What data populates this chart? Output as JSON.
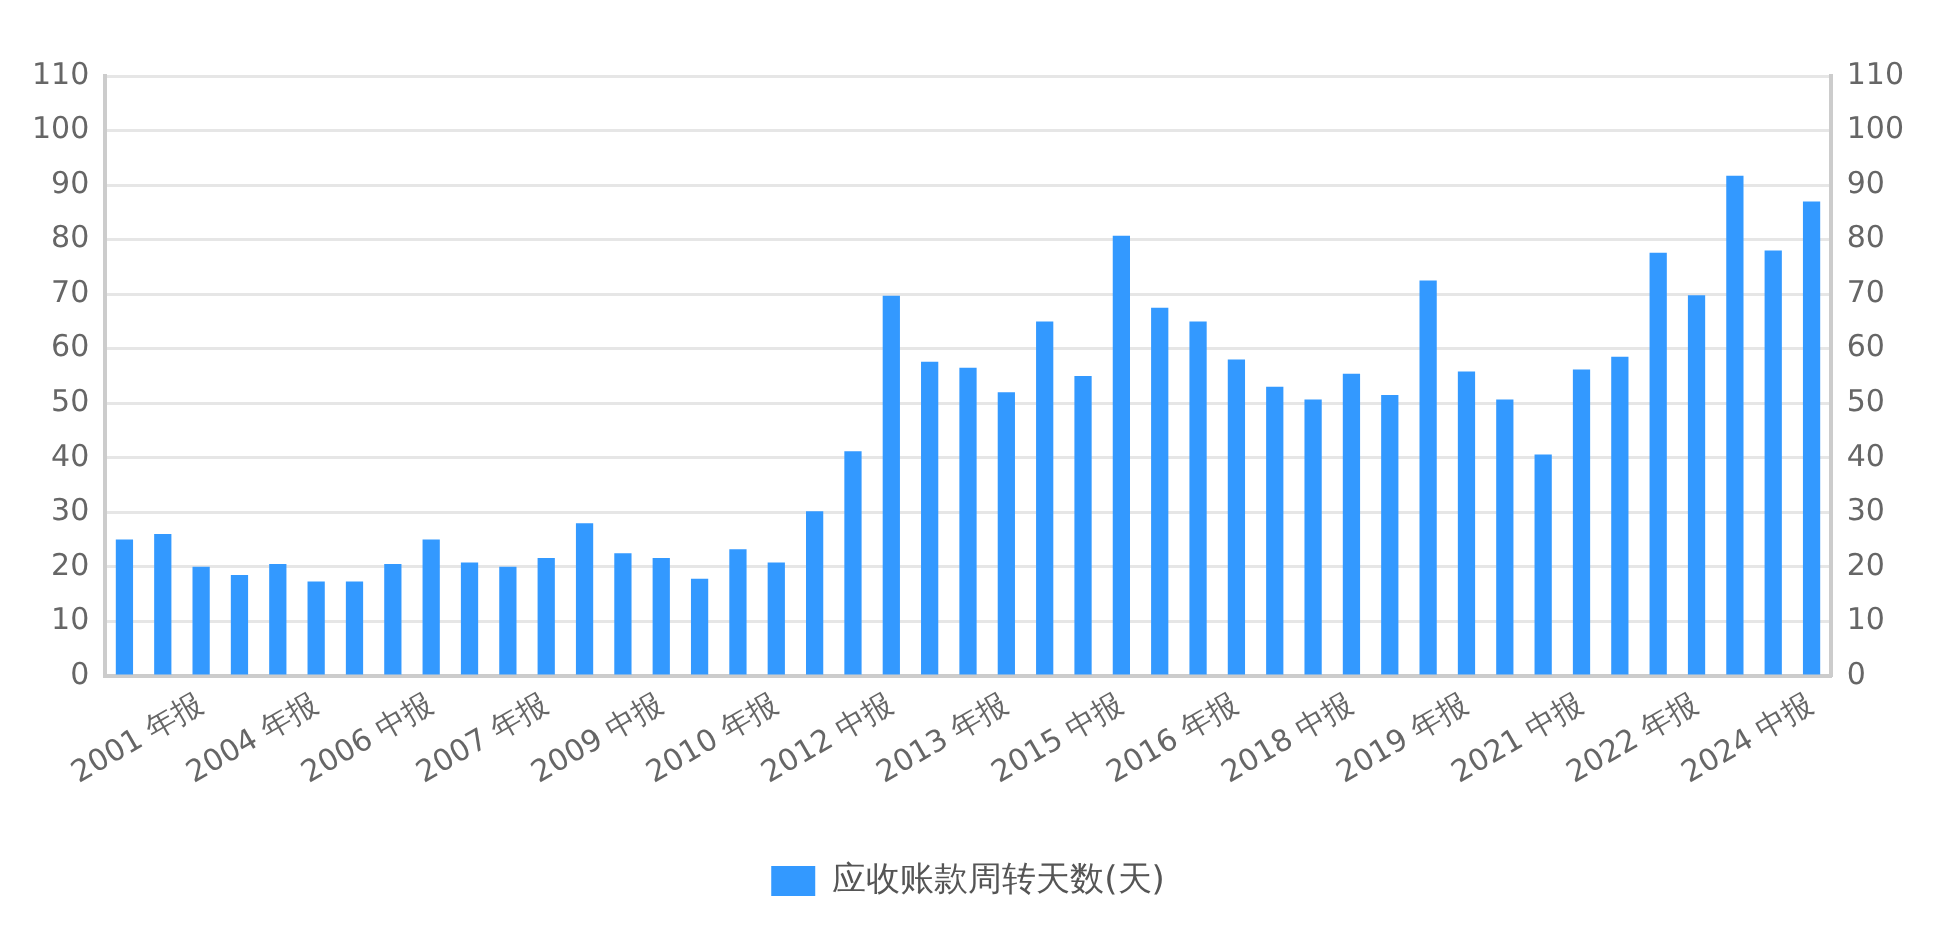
{
  "chart_data": {
    "type": "bar",
    "categories": [
      null,
      null,
      "2001 年报",
      null,
      null,
      "2004 年报",
      null,
      null,
      "2006 中报",
      null,
      null,
      "2007 年报",
      null,
      null,
      "2009 中报",
      null,
      null,
      "2010 年报",
      null,
      null,
      "2012 中报",
      null,
      null,
      "2013 年报",
      null,
      null,
      "2015 中报",
      null,
      null,
      "2016 年报",
      null,
      null,
      "2018 中报",
      null,
      null,
      "2019 年报",
      null,
      null,
      "2021 中报",
      null,
      null,
      "2022 年报",
      null,
      null,
      "2024 中报"
    ],
    "series": [
      {
        "name": "应收账款周转天数(天)",
        "color": "#3399ff",
        "values": [
          25,
          26,
          20,
          18.5,
          20.5,
          17.3,
          17.3,
          20.5,
          25,
          20.8,
          20,
          21.6,
          28,
          22.5,
          21.6,
          17.8,
          23.2,
          20.8,
          30.2,
          41.2,
          69.7,
          57.6,
          56.5,
          52,
          65,
          55,
          80.7,
          67.5,
          65,
          58,
          53,
          50.7,
          55.4,
          51.5,
          72.5,
          55.8,
          50.7,
          40.6,
          56.2,
          58.5,
          77.6,
          69.8,
          91.7,
          78,
          87
        ]
      }
    ],
    "ylim": [
      0,
      110
    ],
    "yticks": [
      0,
      10,
      20,
      30,
      40,
      50,
      60,
      70,
      80,
      90,
      100,
      110
    ],
    "y2lim": [
      0,
      110
    ],
    "y2ticks": [
      0,
      10,
      20,
      30,
      40,
      50,
      60,
      70,
      80,
      90,
      100,
      110
    ],
    "grid": "y",
    "legend": "bottom"
  }
}
